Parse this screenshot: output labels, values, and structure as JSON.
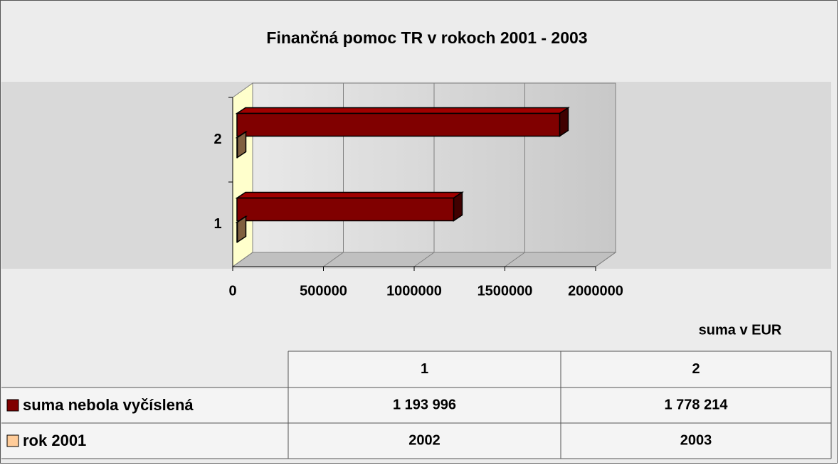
{
  "chart_data": {
    "type": "bar",
    "orientation": "horizontal",
    "three_d": true,
    "title": "Finančná pomoc TR v rokoch 2001 - 2003",
    "categories": [
      "1",
      "2"
    ],
    "series": [
      {
        "name": "suma nebola vyčíslená",
        "color": "#800000",
        "values": [
          1193996,
          1778214
        ],
        "value_labels": [
          "1 193 996",
          "1 778 214"
        ]
      },
      {
        "name": "rok 2001",
        "color": "#ffcc99",
        "values": [
          2002,
          2003
        ]
      }
    ],
    "xlim": [
      0,
      2000000
    ],
    "xticks": [
      0,
      500000,
      1000000,
      1500000,
      2000000
    ],
    "x_label": "suma v EUR",
    "grid": true,
    "data_table": true
  }
}
